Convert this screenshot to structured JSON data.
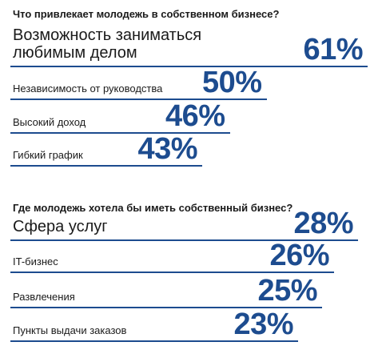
{
  "chart_data": [
    {
      "type": "bar",
      "title": "Что привлекает молодежь в собственном бизнесе?",
      "unit": "%",
      "categories": [
        "Возможность заниматься любимым делом",
        "Независимость от руководства",
        "Высокий доход",
        "Гибкий график"
      ],
      "values": [
        61,
        50,
        46,
        43
      ],
      "labels": [
        "61%",
        "50%",
        "46%",
        "43%"
      ]
    },
    {
      "type": "bar",
      "title": "Где молодежь хотела бы иметь собственный бизнес?",
      "unit": "%",
      "categories": [
        "Сфера услуг",
        "IT-бизнес",
        "Развлечения",
        "Пункты выдачи заказов"
      ],
      "values": [
        28,
        26,
        25,
        23
      ],
      "labels": [
        "28%",
        "26%",
        "25%",
        "23%"
      ]
    }
  ],
  "colors": {
    "accent": "#1d4c8f",
    "text": "#1a1a1a"
  }
}
